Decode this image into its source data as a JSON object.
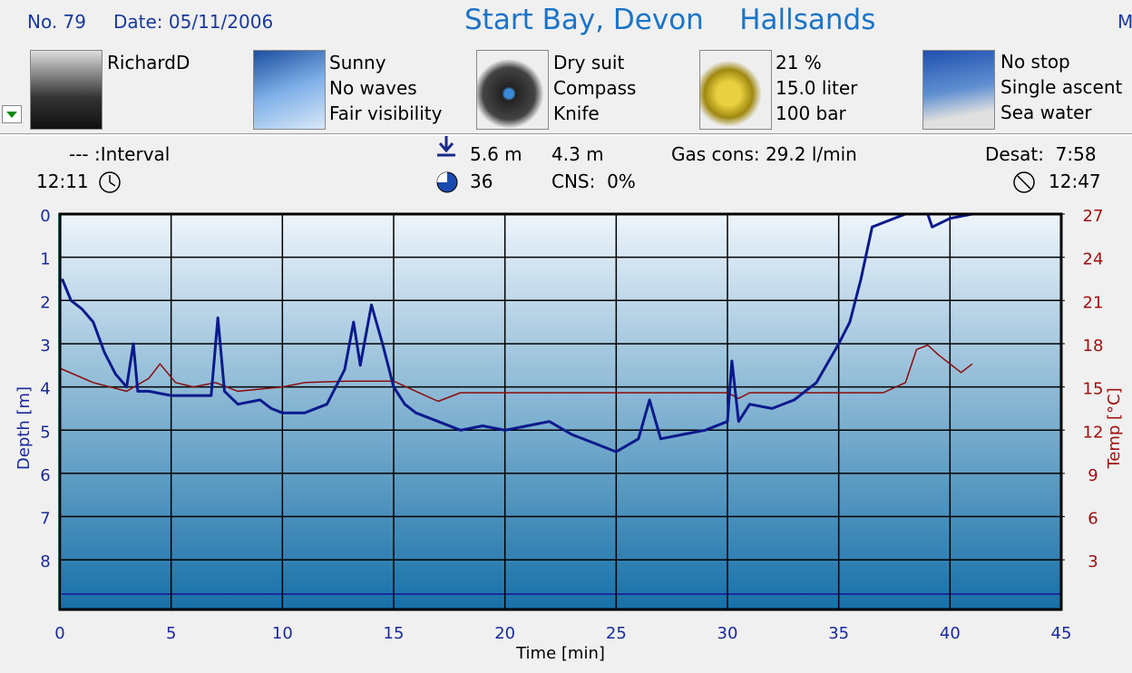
{
  "header": {
    "number": "No. 79",
    "date": "Date: 05/11/2006",
    "title": "Start Bay, Devon    Hallsands",
    "cut": "M"
  },
  "panels": [
    {
      "lines": [
        "RichardD"
      ]
    },
    {
      "lines": [
        "Sunny",
        "No waves",
        "Fair visibility"
      ]
    },
    {
      "lines": [
        "Dry suit",
        "Compass",
        "Knife"
      ]
    },
    {
      "lines": [
        "21 %",
        "15.0 liter",
        "100 bar"
      ]
    },
    {
      "lines": [
        "No stop",
        "Single ascent",
        "Sea water"
      ]
    }
  ],
  "stats": {
    "interval": "--- :Interval",
    "start_time": "12:11",
    "max_depth": "5.6 m",
    "avg_depth": "4.3 m",
    "gas_cons": "Gas cons: 29.2 l/min",
    "duration": "36",
    "cns": "CNS:  0%",
    "desat": "Desat:  7:58",
    "end_time": "12:47"
  },
  "chart_data": {
    "type": "line",
    "x_label": "Time [min]",
    "y_label": "Depth [m]",
    "y2_label": "Temp [°C]",
    "xlim": [
      0,
      45
    ],
    "xticks": [
      0,
      5,
      10,
      15,
      20,
      25,
      30,
      35,
      40,
      45
    ],
    "ylim": [
      9.15,
      0
    ],
    "yticks": [
      0,
      1,
      2,
      3,
      4,
      5,
      6,
      7,
      8
    ],
    "y2lim": [
      -0.45,
      27
    ],
    "y2ticks": [
      3,
      6,
      9,
      12,
      15,
      18,
      21,
      24,
      27
    ],
    "grid": true,
    "series": [
      {
        "color": "#0a1a8c",
        "x": [
          0.1,
          0.5,
          1,
          1.5,
          2,
          2.5,
          3,
          3.3,
          3.5,
          4,
          5,
          6,
          6.8,
          7.1,
          7.4,
          8,
          9,
          9.5,
          10,
          11,
          12,
          12.8,
          13.2,
          13.5,
          14,
          14.5,
          15,
          15.5,
          16,
          17,
          18,
          19,
          20,
          21,
          22,
          23,
          24,
          25,
          26,
          26.5,
          27,
          28,
          29,
          30,
          30.2,
          30.5,
          31,
          32,
          33,
          34,
          35,
          35.5,
          36,
          36.5,
          37,
          38,
          39,
          39.2,
          40,
          41
        ],
        "values": [
          1.5,
          2.0,
          2.2,
          2.5,
          3.2,
          3.7,
          4.0,
          3.0,
          4.1,
          4.1,
          4.2,
          4.2,
          4.2,
          2.4,
          4.1,
          4.4,
          4.3,
          4.5,
          4.6,
          4.6,
          4.4,
          3.6,
          2.5,
          3.5,
          2.1,
          3.0,
          4.0,
          4.4,
          4.6,
          4.8,
          5.0,
          4.9,
          5.0,
          4.9,
          4.8,
          5.1,
          5.3,
          5.5,
          5.2,
          4.3,
          5.2,
          5.1,
          5.0,
          4.8,
          3.4,
          4.8,
          4.4,
          4.5,
          4.3,
          3.9,
          3.0,
          2.5,
          1.5,
          0.3,
          0.2,
          0.0,
          0.0,
          0.3,
          0.1,
          0.0
        ]
      },
      {
        "color": "#8b0a0a",
        "axis": "y2",
        "x": [
          0,
          1.5,
          3,
          4,
          4.5,
          5.2,
          6,
          7,
          8,
          10,
          11,
          13,
          15,
          16,
          17,
          18,
          20,
          25,
          30,
          30.5,
          31,
          35,
          37,
          38,
          38.5,
          39,
          39.5,
          40.5,
          41
        ],
        "values": [
          16.3,
          15.3,
          14.7,
          15.6,
          16.6,
          15.3,
          15.0,
          15.3,
          14.7,
          15.0,
          15.3,
          15.4,
          15.4,
          14.7,
          14.0,
          14.6,
          14.6,
          14.6,
          14.6,
          14.2,
          14.6,
          14.6,
          14.6,
          15.3,
          17.6,
          17.9,
          17.2,
          16.0,
          16.6
        ]
      }
    ]
  }
}
